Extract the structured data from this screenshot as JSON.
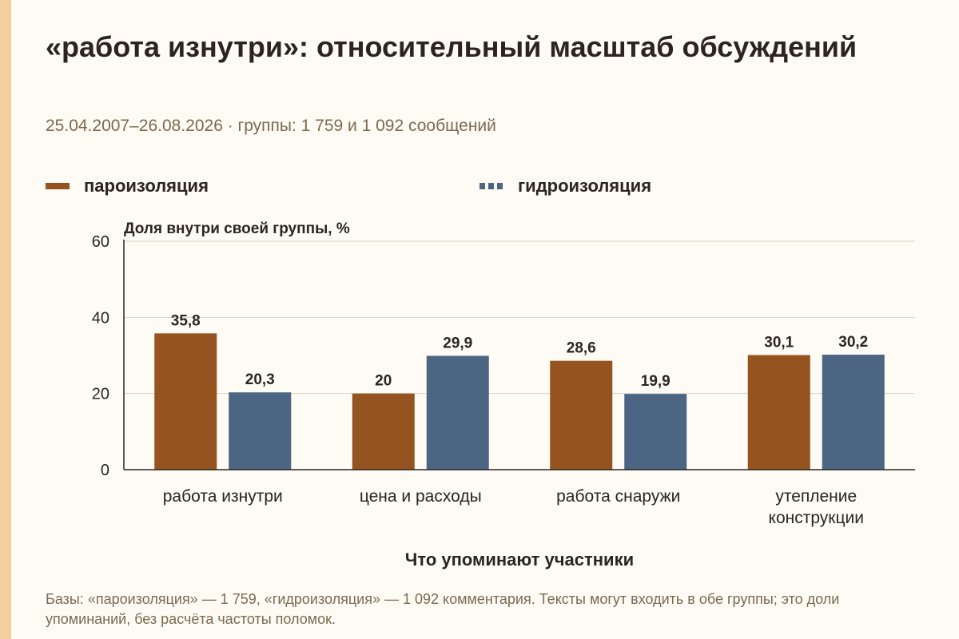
{
  "title": "«работа изнутри»: относительный масштаб обсуждений",
  "subtitle": "25.04.2007–26.08.2026 · группы: 1 759 и 1 092 сообщений",
  "footnote": "Базы: «пароизоляция» — 1 759, «гидроизоляция» — 1 092 комментария. Тексты могут входить в обе группы; это доли упоминаний, без расчёта частоты поломок.",
  "colors": {
    "accent_strip": "#f3cf9d",
    "series_1": "#94531f",
    "series_2": "#4b6582",
    "grid": "#dcd6c9",
    "axis": "#2a2521"
  },
  "chart_data": {
    "type": "bar",
    "ylabel": "Доля внутри своей группы, %",
    "xlabel": "Что упоминают участники",
    "ylim": [
      0,
      60
    ],
    "yticks": [
      0,
      20,
      40,
      60
    ],
    "grid": true,
    "legend_position": "top",
    "categories": [
      [
        "работа изнутри"
      ],
      [
        "цена и расходы"
      ],
      [
        "работа снаружи"
      ],
      [
        "утепление",
        "конструкции"
      ]
    ],
    "series": [
      {
        "name": "пароизоляция",
        "style": "solid",
        "values": [
          35.8,
          20,
          28.6,
          30.1
        ],
        "labels": [
          "35,8",
          "20",
          "28,6",
          "30,1"
        ]
      },
      {
        "name": "гидроизоляция",
        "style": "dashed",
        "values": [
          20.3,
          29.9,
          19.9,
          30.2
        ],
        "labels": [
          "20,3",
          "29,9",
          "19,9",
          "30,2"
        ]
      }
    ]
  }
}
